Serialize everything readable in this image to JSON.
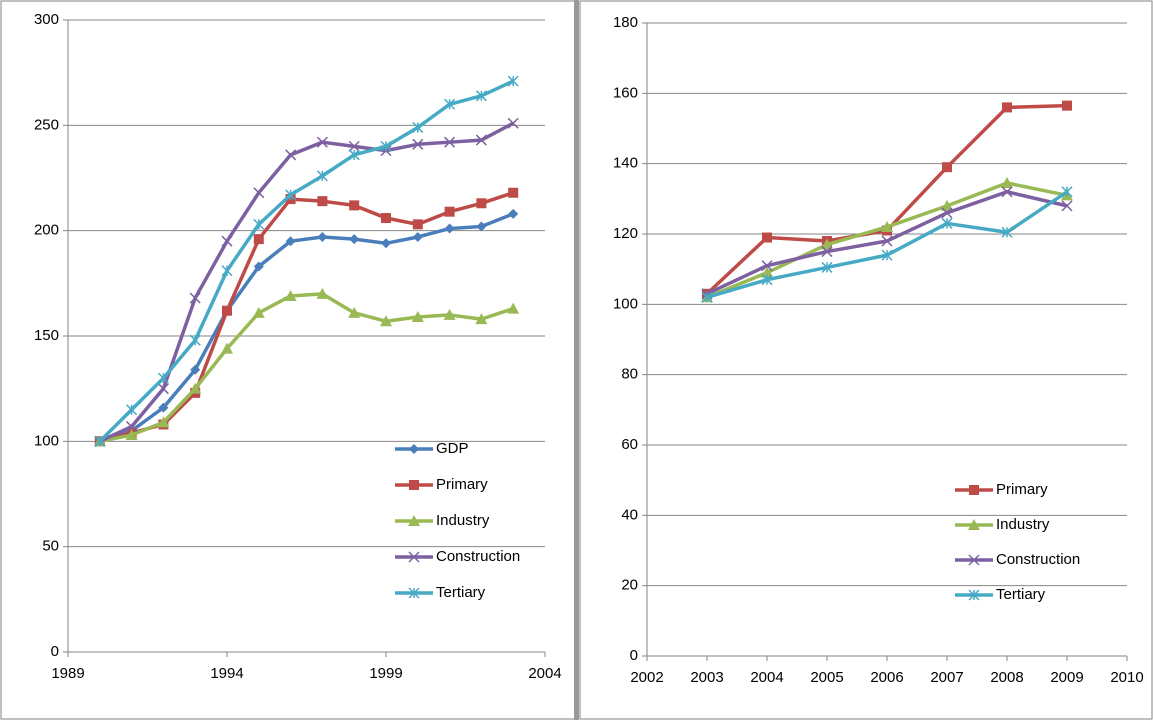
{
  "chart_data": [
    {
      "type": "line",
      "x": [
        1990,
        1991,
        1992,
        1993,
        1994,
        1995,
        1996,
        1997,
        1998,
        1999,
        2000,
        2001,
        2002,
        2003
      ],
      "xlim": [
        1989,
        2004
      ],
      "xticks": [
        1989,
        1994,
        1999,
        2004
      ],
      "ylim": [
        0,
        300
      ],
      "yticks": [
        0,
        50,
        100,
        150,
        200,
        250,
        300
      ],
      "grid": true,
      "legend": "lower right",
      "series": [
        {
          "name": "GDP",
          "color": "#4a7ebb",
          "marker": "diamond",
          "values": [
            100,
            105,
            116,
            134,
            162,
            183,
            195,
            197,
            196,
            194,
            197,
            201,
            202,
            208
          ]
        },
        {
          "name": "Primary",
          "color": "#be4b48",
          "marker": "square",
          "values": [
            100,
            104,
            108,
            123,
            162,
            196,
            215,
            214,
            212,
            206,
            203,
            209,
            213,
            218
          ]
        },
        {
          "name": "Industry",
          "color": "#98b954",
          "marker": "triangle",
          "values": [
            100,
            103,
            109,
            125,
            144,
            161,
            169,
            170,
            161,
            157,
            159,
            160,
            158,
            163
          ]
        },
        {
          "name": "Construction",
          "color": "#7d60a0",
          "marker": "x",
          "values": [
            100,
            107,
            125,
            168,
            195,
            218,
            236,
            242,
            240,
            238,
            241,
            242,
            243,
            251
          ]
        },
        {
          "name": "Tertiary",
          "color": "#46aac5",
          "marker": "star",
          "values": [
            100,
            115,
            130,
            148,
            181,
            203,
            217,
            226,
            236,
            240,
            249,
            260,
            264,
            271
          ]
        }
      ]
    },
    {
      "type": "line",
      "x": [
        2003,
        2004,
        2005,
        2006,
        2007,
        2008,
        2009
      ],
      "xlim": [
        2002,
        2010
      ],
      "xticks": [
        2002,
        2003,
        2004,
        2005,
        2006,
        2007,
        2008,
        2009,
        2010
      ],
      "ylim": [
        0,
        180
      ],
      "yticks": [
        0,
        20,
        40,
        60,
        80,
        100,
        120,
        140,
        160,
        180
      ],
      "grid": true,
      "legend": "lower right",
      "series": [
        {
          "name": "Primary",
          "color": "#be4b48",
          "marker": "square",
          "values": [
            103,
            119,
            118,
            121,
            139,
            156,
            156.5
          ]
        },
        {
          "name": "Industry",
          "color": "#98b954",
          "marker": "triangle",
          "values": [
            102,
            109,
            117,
            122,
            128,
            134.5,
            131
          ]
        },
        {
          "name": "Construction",
          "color": "#7d60a0",
          "marker": "x",
          "values": [
            103,
            111,
            115,
            118,
            126,
            132,
            128
          ]
        },
        {
          "name": "Tertiary",
          "color": "#46aac5",
          "marker": "star",
          "values": [
            102,
            107,
            110.5,
            114,
            123,
            120.5,
            132
          ]
        }
      ]
    }
  ]
}
